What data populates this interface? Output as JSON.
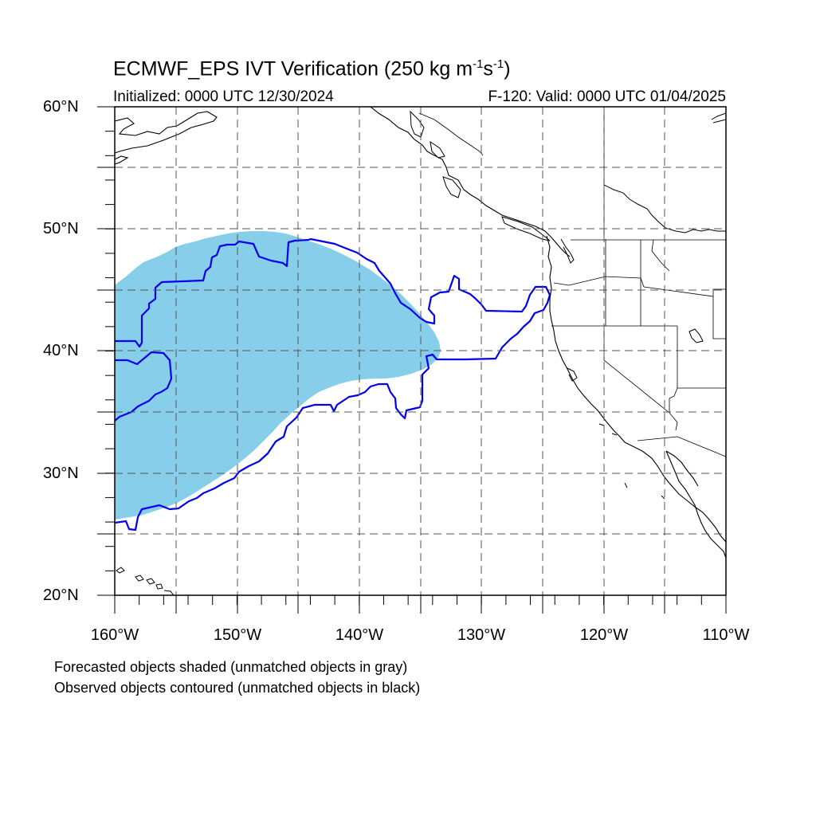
{
  "title": {
    "main": "ECMWF_EPS IVT Verification (250 kg m",
    "exp1": "-1",
    "mid": "s",
    "exp2": "-1",
    "end": ")"
  },
  "initialized": "Initialized: 0000 UTC 12/30/2024",
  "valid": "F-120: Valid: 0000 UTC 01/04/2025",
  "lat_labels": [
    "60°N",
    "50°N",
    "40°N",
    "30°N",
    "20°N"
  ],
  "lon_labels": [
    "160°W",
    "150°W",
    "140°W",
    "130°W",
    "120°W",
    "110°W"
  ],
  "notes": [
    "Forecasted objects shaded (unmatched objects in gray)",
    "Observed objects contoured (unmatched objects in black)"
  ],
  "colors": {
    "forecast_fill": "#87CEEB",
    "observed_contour": "#0000EE",
    "coast": "#000000",
    "grid": "#555555"
  },
  "map_extent": {
    "lon_min": -160,
    "lon_max": -110,
    "lat_min": 20,
    "lat_max": 60
  }
}
